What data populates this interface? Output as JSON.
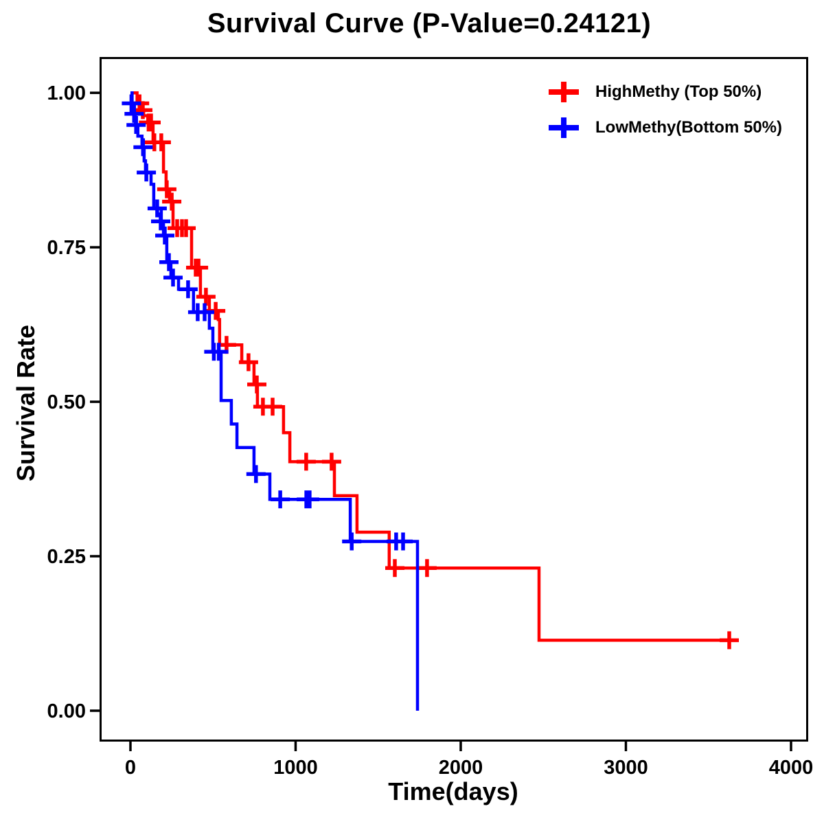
{
  "page": {
    "background": "#ffffff"
  },
  "chart_data": {
    "type": "line",
    "variant": "kaplan_meier_step_curve",
    "title": "Survival Curve (P-Value=0.24121)",
    "p_value": "0.24121",
    "xlabel": "Time(days)",
    "ylabel": "Survival Rate",
    "xlim": [
      -187,
      4104
    ],
    "ylim": [
      -0.05,
      1.058
    ],
    "grid": false,
    "legend_position": "top-right-inside",
    "xticks": {
      "values": [
        0,
        1000,
        2000,
        3000,
        4000
      ],
      "labels": [
        "0",
        "1000",
        "2000",
        "3000",
        "4000"
      ]
    },
    "yticks": {
      "values": [
        0,
        0.25,
        0.5,
        0.75,
        1
      ],
      "labels": [
        "0.00",
        "0.25",
        "0.50",
        "0.75",
        "1.00"
      ]
    },
    "series": [
      {
        "name": "HighMethy (Top 50%)",
        "color": "#ff0000",
        "end_day": 3650,
        "steps": [
          [
            0,
            1.0
          ],
          [
            40,
            0.983
          ],
          [
            65,
            0.972
          ],
          [
            80,
            0.963
          ],
          [
            105,
            0.952
          ],
          [
            137,
            0.92
          ],
          [
            200,
            0.872
          ],
          [
            216,
            0.844
          ],
          [
            237,
            0.824
          ],
          [
            258,
            0.781
          ],
          [
            370,
            0.717
          ],
          [
            424,
            0.67
          ],
          [
            478,
            0.647
          ],
          [
            532,
            0.633
          ],
          [
            540,
            0.592
          ],
          [
            674,
            0.564
          ],
          [
            748,
            0.528
          ],
          [
            769,
            0.492
          ],
          [
            927,
            0.45
          ],
          [
            965,
            0.403
          ],
          [
            1235,
            0.348
          ],
          [
            1372,
            0.289
          ],
          [
            1567,
            0.231
          ],
          [
            2474,
            0.114
          ]
        ],
        "censors": [
          [
            55,
            0.983
          ],
          [
            75,
            0.972
          ],
          [
            110,
            0.952
          ],
          [
            125,
            0.952
          ],
          [
            145,
            0.92
          ],
          [
            187,
            0.92
          ],
          [
            220,
            0.844
          ],
          [
            250,
            0.824
          ],
          [
            283,
            0.781
          ],
          [
            312,
            0.781
          ],
          [
            337,
            0.781
          ],
          [
            395,
            0.717
          ],
          [
            412,
            0.717
          ],
          [
            457,
            0.67
          ],
          [
            516,
            0.647
          ],
          [
            582,
            0.592
          ],
          [
            715,
            0.564
          ],
          [
            765,
            0.528
          ],
          [
            802,
            0.492
          ],
          [
            861,
            0.492
          ],
          [
            1064,
            0.403
          ],
          [
            1218,
            0.403
          ],
          [
            1601,
            0.231
          ],
          [
            1796,
            0.231
          ],
          [
            3626,
            0.114
          ]
        ]
      },
      {
        "name": "LowMethy(Bottom 50%)",
        "color": "#0000ff",
        "end_day": 1738,
        "steps": [
          [
            0,
            1.0
          ],
          [
            10,
            0.983
          ],
          [
            20,
            0.966
          ],
          [
            30,
            0.948
          ],
          [
            45,
            0.93
          ],
          [
            70,
            0.912
          ],
          [
            83,
            0.89
          ],
          [
            91,
            0.871
          ],
          [
            125,
            0.852
          ],
          [
            141,
            0.813
          ],
          [
            187,
            0.792
          ],
          [
            200,
            0.769
          ],
          [
            220,
            0.726
          ],
          [
            245,
            0.701
          ],
          [
            291,
            0.682
          ],
          [
            382,
            0.645
          ],
          [
            478,
            0.619
          ],
          [
            499,
            0.581
          ],
          [
            549,
            0.502
          ],
          [
            611,
            0.464
          ],
          [
            645,
            0.426
          ],
          [
            748,
            0.383
          ],
          [
            844,
            0.342
          ],
          [
            1331,
            0.274
          ],
          [
            1738,
            0.0
          ]
        ],
        "censors": [
          [
            6,
            0.983
          ],
          [
            22,
            0.966
          ],
          [
            34,
            0.948
          ],
          [
            76,
            0.912
          ],
          [
            96,
            0.871
          ],
          [
            162,
            0.813
          ],
          [
            183,
            0.792
          ],
          [
            208,
            0.769
          ],
          [
            233,
            0.726
          ],
          [
            258,
            0.701
          ],
          [
            349,
            0.682
          ],
          [
            407,
            0.645
          ],
          [
            449,
            0.645
          ],
          [
            505,
            0.581
          ],
          [
            535,
            0.581
          ],
          [
            760,
            0.383
          ],
          [
            907,
            0.342
          ],
          [
            1065,
            0.342
          ],
          [
            1085,
            0.342
          ],
          [
            1340,
            0.274
          ],
          [
            1609,
            0.274
          ],
          [
            1651,
            0.274
          ]
        ]
      }
    ]
  }
}
